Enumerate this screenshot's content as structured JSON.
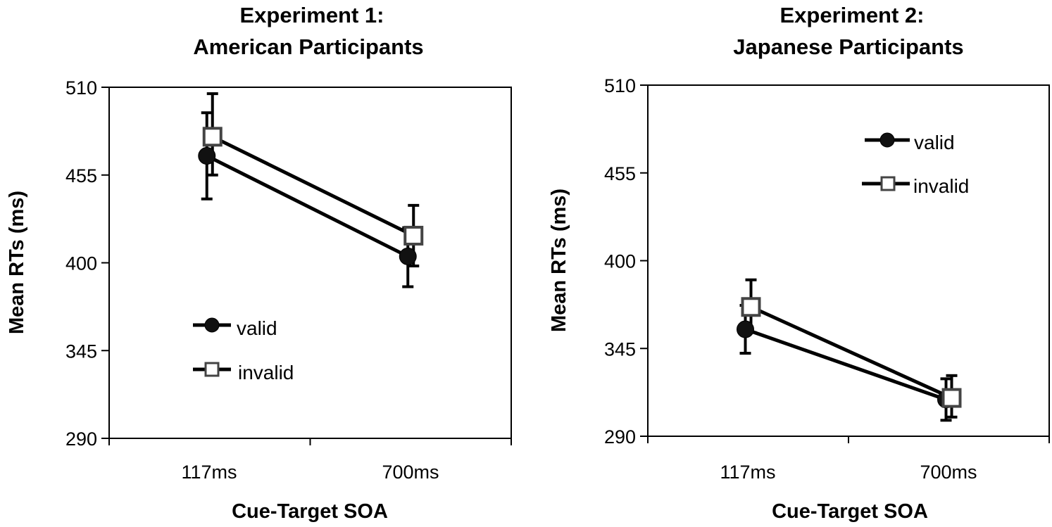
{
  "chart_data": [
    {
      "type": "line",
      "title": "Experiment 1:",
      "subtitle": "American Participants",
      "xlabel": "Cue-Target SOA",
      "ylabel": "Mean RTs (ms)",
      "categories": [
        "117ms",
        "700ms"
      ],
      "yticks": [
        "510",
        "455",
        "400",
        "345",
        "290"
      ],
      "ylim": [
        290,
        510
      ],
      "grid": false,
      "legend": "bottom-left",
      "series": [
        {
          "name": "valid",
          "marker": "filled-circle",
          "values": [
            467,
            404
          ],
          "err_low": [
            440,
            385
          ],
          "err_high": [
            494,
            422
          ]
        },
        {
          "name": "invalid",
          "marker": "open-square",
          "values": [
            479,
            417
          ],
          "err_low": [
            455,
            398
          ],
          "err_high": [
            506,
            436
          ]
        }
      ]
    },
    {
      "type": "line",
      "title": "Experiment 2:",
      "subtitle": "Japanese Participants",
      "xlabel": "Cue-Target SOA",
      "ylabel": "Mean RTs (ms)",
      "categories": [
        "117ms",
        "700ms"
      ],
      "yticks": [
        "510",
        "455",
        "400",
        "345",
        "290"
      ],
      "ylim": [
        290,
        510
      ],
      "grid": false,
      "legend": "top-right",
      "series": [
        {
          "name": "valid",
          "marker": "filled-circle",
          "values": [
            357,
            313
          ],
          "err_low": [
            342,
            300
          ],
          "err_high": [
            372,
            326
          ]
        },
        {
          "name": "invalid",
          "marker": "open-square",
          "values": [
            371,
            314
          ],
          "err_low": [
            355,
            302
          ],
          "err_high": [
            388,
            328
          ]
        }
      ]
    }
  ]
}
